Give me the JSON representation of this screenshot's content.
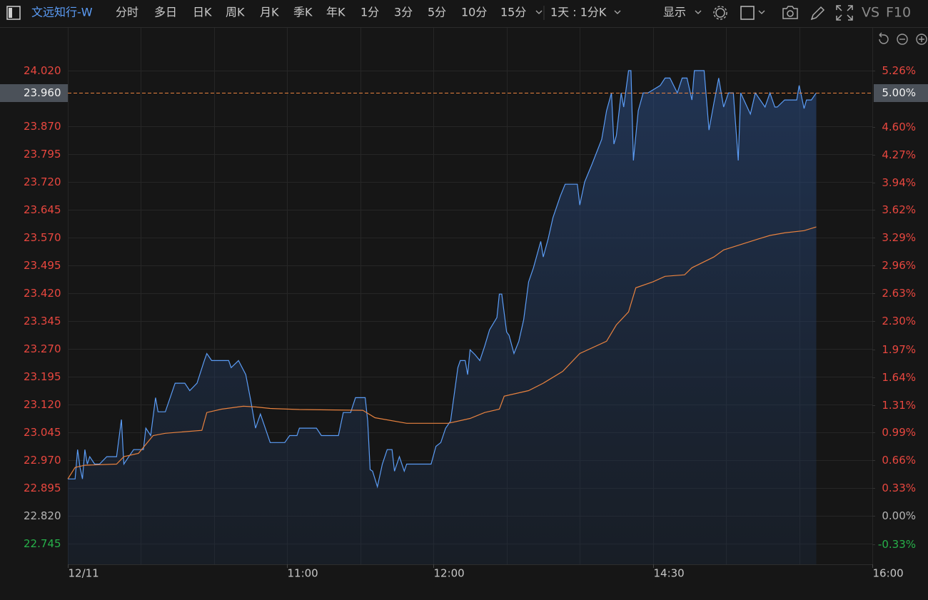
{
  "toolbar": {
    "symbol": "文远知行-W",
    "tabs": [
      "分时",
      "多日",
      "日K",
      "周K",
      "月K",
      "季K",
      "年K",
      "1分",
      "3分",
      "5分",
      "10分",
      "15分"
    ],
    "selected": 0,
    "range": "1天 : 1分K",
    "display": "显示",
    "vs": "VS",
    "f10": "F10"
  },
  "chart_data": {
    "type": "line",
    "grid": true,
    "xlim": [
      0,
      330
    ],
    "xticks": [
      {
        "value": 0,
        "label": "12/11"
      },
      {
        "value": 90,
        "label": "11:00"
      },
      {
        "value": 150,
        "label": "12:00"
      },
      {
        "value": 240,
        "label": "14:30"
      },
      {
        "value": 330,
        "label": "16:00"
      }
    ],
    "xgrid": [
      30,
      60,
      120,
      180,
      210,
      270,
      300
    ],
    "ylim": [
      22.69,
      24.12
    ],
    "yticks": [
      {
        "value": 24.02,
        "label": "24.020"
      },
      {
        "value": 23.87,
        "label": "23.870"
      },
      {
        "value": 23.795,
        "label": "23.795"
      },
      {
        "value": 23.72,
        "label": "23.720"
      },
      {
        "value": 23.645,
        "label": "23.645"
      },
      {
        "value": 23.57,
        "label": "23.570"
      },
      {
        "value": 23.495,
        "label": "23.495"
      },
      {
        "value": 23.42,
        "label": "23.420"
      },
      {
        "value": 23.345,
        "label": "23.345"
      },
      {
        "value": 23.27,
        "label": "23.270"
      },
      {
        "value": 23.195,
        "label": "23.195"
      },
      {
        "value": 23.12,
        "label": "23.120"
      },
      {
        "value": 23.045,
        "label": "23.045"
      },
      {
        "value": 22.97,
        "label": "22.970"
      },
      {
        "value": 22.895,
        "label": "22.895"
      },
      {
        "value": 22.82,
        "label": "22.820"
      },
      {
        "value": 22.745,
        "label": "22.745"
      }
    ],
    "y2lim": [
      -0.57,
      5.7
    ],
    "y2ticks": [
      {
        "value": 5.26,
        "label": "5.26%"
      },
      {
        "value": 4.6,
        "label": "4.60%"
      },
      {
        "value": 4.27,
        "label": "4.27%"
      },
      {
        "value": 3.94,
        "label": "3.94%"
      },
      {
        "value": 3.62,
        "label": "3.62%"
      },
      {
        "value": 3.29,
        "label": "3.29%"
      },
      {
        "value": 2.96,
        "label": "2.96%"
      },
      {
        "value": 2.63,
        "label": "2.63%"
      },
      {
        "value": 2.3,
        "label": "2.30%"
      },
      {
        "value": 1.97,
        "label": "1.97%"
      },
      {
        "value": 1.64,
        "label": "1.64%"
      },
      {
        "value": 1.31,
        "label": "1.31%"
      },
      {
        "value": 0.99,
        "label": "0.99%"
      },
      {
        "value": 0.66,
        "label": "0.66%"
      },
      {
        "value": 0.33,
        "label": "0.33%"
      },
      {
        "value": 0,
        "label": "0.00%"
      },
      {
        "value": -0.33,
        "label": "-0.33%"
      }
    ],
    "last": {
      "value": 23.96,
      "label": "23.960",
      "pct": {
        "value": 5.0,
        "label": "5.00%"
      },
      "color": "#e8823f"
    },
    "series": [
      {
        "color": "#5b9cf5",
        "fill": true,
        "x": [
          0,
          3,
          4,
          5,
          6,
          7,
          8,
          9,
          11,
          13,
          16,
          20,
          22,
          23,
          25,
          27,
          31,
          32,
          34,
          36,
          37,
          40,
          44,
          48,
          50,
          53,
          56,
          57,
          59,
          66,
          67,
          70,
          73,
          75,
          77,
          79,
          81,
          83,
          89,
          91,
          94,
          95,
          102,
          104,
          111,
          113,
          116,
          118,
          122,
          123,
          124,
          125,
          127,
          129,
          131,
          133,
          134,
          136,
          138,
          139,
          149,
          151,
          153,
          155,
          157,
          160,
          161,
          163,
          164,
          165,
          167,
          169,
          171,
          173,
          176,
          177,
          178,
          180,
          181,
          183,
          185,
          187,
          189,
          191,
          194,
          195,
          197,
          199,
          202,
          204,
          209,
          210,
          212,
          215,
          219,
          221,
          223,
          224,
          225,
          227,
          228,
          230,
          231,
          232,
          234,
          236,
          238,
          243,
          245,
          247,
          250,
          252,
          254,
          256,
          257,
          261,
          263,
          265,
          267,
          269,
          271,
          273,
          275,
          276,
          280,
          282,
          286,
          288,
          290,
          291,
          294,
          299,
          300,
          302,
          303,
          305,
          307
        ],
        "values": [
          22.92,
          22.92,
          22.999,
          22.951,
          22.92,
          22.999,
          22.96,
          22.98,
          22.96,
          22.96,
          22.98,
          22.98,
          23.08,
          22.96,
          22.98,
          22.999,
          22.999,
          23.057,
          23.037,
          23.139,
          23.101,
          23.101,
          23.178,
          23.178,
          23.158,
          23.178,
          23.239,
          23.258,
          23.239,
          23.239,
          23.22,
          23.239,
          23.201,
          23.133,
          23.057,
          23.095,
          23.057,
          23.018,
          23.018,
          23.037,
          23.037,
          23.057,
          23.057,
          23.037,
          23.037,
          23.099,
          23.099,
          23.139,
          23.139,
          23.076,
          22.945,
          22.941,
          22.899,
          22.96,
          22.999,
          22.999,
          22.941,
          22.98,
          22.941,
          22.96,
          22.96,
          23.008,
          23.018,
          23.057,
          23.076,
          23.22,
          23.239,
          23.239,
          23.201,
          23.268,
          23.255,
          23.239,
          23.278,
          23.322,
          23.355,
          23.418,
          23.418,
          23.316,
          23.307,
          23.258,
          23.291,
          23.349,
          23.451,
          23.489,
          23.56,
          23.518,
          23.566,
          23.624,
          23.682,
          23.714,
          23.714,
          23.658,
          23.72,
          23.768,
          23.835,
          23.912,
          23.96,
          23.822,
          23.845,
          23.96,
          23.922,
          24.02,
          24.02,
          23.778,
          23.912,
          23.96,
          23.96,
          23.98,
          24.0,
          24.0,
          23.96,
          24.0,
          24.0,
          23.941,
          24.02,
          24.02,
          23.86,
          23.932,
          24.0,
          23.922,
          23.96,
          23.96,
          23.778,
          23.96,
          23.903,
          23.96,
          23.922,
          23.96,
          23.922,
          23.922,
          23.941,
          23.941,
          23.98,
          23.918,
          23.941,
          23.941,
          23.96
        ]
      },
      {
        "color": "#e8823f",
        "fill": false,
        "x": [
          0,
          3,
          7,
          20,
          23,
          29,
          35,
          40,
          55,
          57,
          63,
          72,
          77,
          83,
          95,
          121,
          126,
          139,
          156,
          165,
          171,
          177,
          179,
          189,
          195,
          203,
          210,
          221,
          225,
          230,
          233,
          240,
          245,
          253,
          256,
          265,
          269,
          283,
          288,
          294,
          302,
          307
        ],
        "values": [
          22.92,
          22.951,
          22.957,
          22.96,
          22.98,
          22.989,
          23.037,
          23.043,
          23.051,
          23.099,
          23.108,
          23.116,
          23.114,
          23.11,
          23.107,
          23.105,
          23.085,
          23.07,
          23.07,
          23.083,
          23.099,
          23.108,
          23.143,
          23.158,
          23.178,
          23.21,
          23.258,
          23.291,
          23.335,
          23.37,
          23.435,
          23.451,
          23.466,
          23.47,
          23.489,
          23.518,
          23.537,
          23.566,
          23.576,
          23.583,
          23.589,
          23.599
        ]
      }
    ]
  }
}
